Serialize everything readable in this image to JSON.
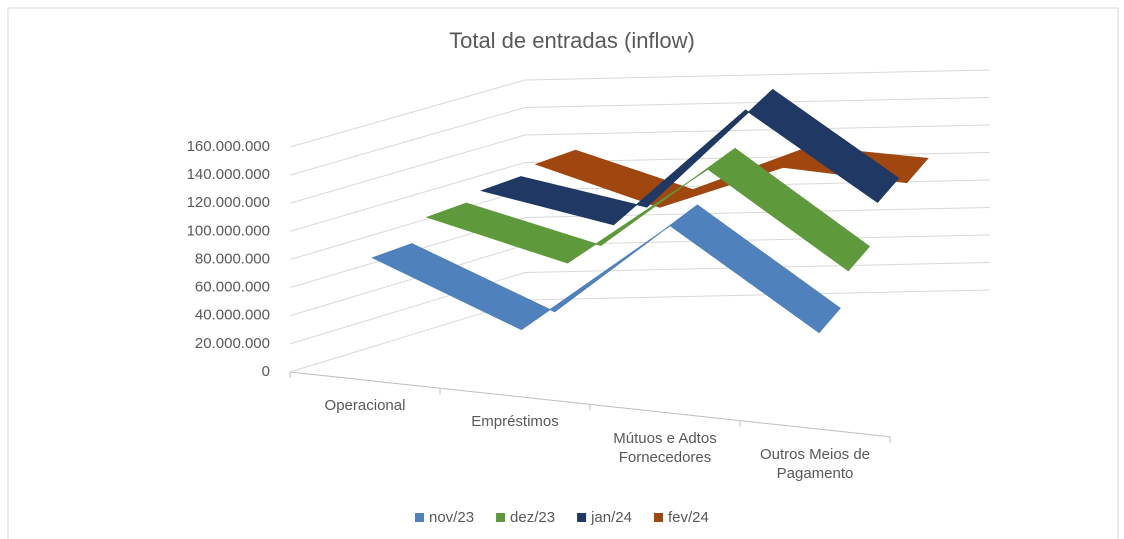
{
  "chart_data": {
    "type": "line3d",
    "title": "Total de entradas (inflow)",
    "categories": [
      "Operacional",
      "Empréstimos",
      "Mútuos e Adtos Fornecedores",
      "Outros Meios de Pagamento"
    ],
    "series": [
      {
        "name": "nov/23",
        "color": "#4f81bd",
        "values": [
          85000000,
          45000000,
          130000000,
          65000000
        ]
      },
      {
        "name": "dez/23",
        "color": "#5e9a3b",
        "values": [
          100000000,
          75000000,
          150000000,
          85000000
        ]
      },
      {
        "name": "jan/24",
        "color": "#1f3864",
        "values": [
          105000000,
          85000000,
          172000000,
          110000000
        ]
      },
      {
        "name": "fev/24",
        "color": "#a0460f",
        "values": [
          110000000,
          80000000,
          110000000,
          100000000
        ]
      }
    ],
    "ylim": [
      0,
      160000000
    ],
    "yticks": [
      0,
      {
        "value": 20000000,
        "label": "20.000.000"
      },
      {
        "value": 40000000,
        "label": "40.000.000"
      },
      {
        "value": 60000000,
        "label": "60.000.000"
      },
      {
        "value": 80000000,
        "label": "80.000.000"
      },
      {
        "value": 100000000,
        "label": "100.000.000"
      },
      {
        "value": 120000000,
        "label": "120.000.000"
      },
      {
        "value": 140000000,
        "label": "140.000.000"
      },
      {
        "value": 160000000,
        "label": "160.000.000"
      }
    ],
    "grid": true,
    "legend": "bottom"
  }
}
